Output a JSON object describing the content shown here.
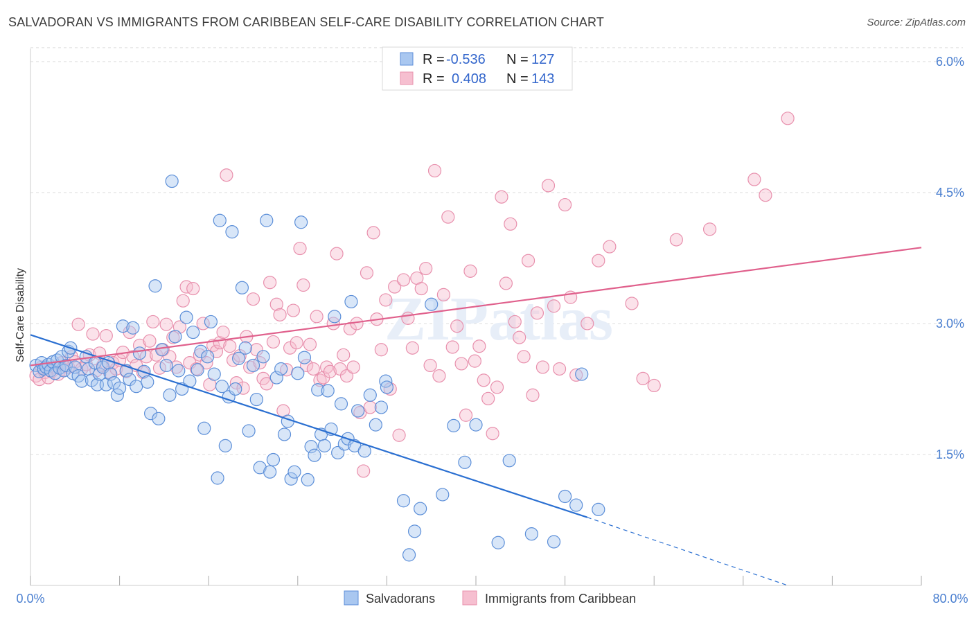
{
  "title": "SALVADORAN VS IMMIGRANTS FROM CARIBBEAN SELF-CARE DISABILITY CORRELATION CHART",
  "source": "Source: ZipAtlas.com",
  "watermark": "ZIPatlas",
  "colors": {
    "blue_fill": "#a9c7f0",
    "blue_stroke": "#5b8ed8",
    "blue_line": "#2a6fd1",
    "pink_fill": "#f6bfd0",
    "pink_stroke": "#e890ad",
    "pink_line": "#e0608c",
    "tick_label": "#4a7fd0",
    "grid": "#dddddd"
  },
  "legend": {
    "rows": [
      {
        "r_label": "R =",
        "r_value": "-0.536",
        "n_label": "N =",
        "n_value": "127"
      },
      {
        "r_label": "R =",
        "r_value": "0.408",
        "n_label": "N =",
        "n_value": "143"
      }
    ]
  },
  "chart_data": {
    "type": "scatter",
    "title": "SALVADORAN VS IMMIGRANTS FROM CARIBBEAN SELF-CARE DISABILITY CORRELATION CHART",
    "xlabel": "",
    "ylabel": "Self-Care Disability",
    "xlim": [
      0,
      80
    ],
    "ylim": [
      0,
      6.15
    ],
    "x_tick_labels": [
      "0.0%",
      "80.0%"
    ],
    "y_ticks": [
      1.5,
      3.0,
      4.5,
      6.0
    ],
    "y_tick_labels": [
      "1.5%",
      "3.0%",
      "4.5%",
      "6.0%"
    ],
    "grid": true,
    "legend_placement": "top-center",
    "series": [
      {
        "name": "Salvadorans",
        "color": "#5b8ed8",
        "trend": {
          "x0": 0,
          "y0": 2.87,
          "x1": 50,
          "y1": 0.78,
          "dashed_to_x": 68,
          "dashed_to_y": 0.0
        },
        "points": [
          [
            0.5,
            2.52
          ],
          [
            0.8,
            2.45
          ],
          [
            1.0,
            2.55
          ],
          [
            1.2,
            2.48
          ],
          [
            1.4,
            2.5
          ],
          [
            1.6,
            2.53
          ],
          [
            1.8,
            2.46
          ],
          [
            2.0,
            2.56
          ],
          [
            2.2,
            2.43
          ],
          [
            2.4,
            2.58
          ],
          [
            2.6,
            2.49
          ],
          [
            2.8,
            2.62
          ],
          [
            3.0,
            2.46
          ],
          [
            3.2,
            2.52
          ],
          [
            3.4,
            2.68
          ],
          [
            3.6,
            2.72
          ],
          [
            3.8,
            2.43
          ],
          [
            4.0,
            2.5
          ],
          [
            4.3,
            2.4
          ],
          [
            4.6,
            2.34
          ],
          [
            5.0,
            2.62
          ],
          [
            5.2,
            2.48
          ],
          [
            5.5,
            2.35
          ],
          [
            5.8,
            2.55
          ],
          [
            6.0,
            2.3
          ],
          [
            6.2,
            2.42
          ],
          [
            6.5,
            2.5
          ],
          [
            6.8,
            2.3
          ],
          [
            7.0,
            2.55
          ],
          [
            7.2,
            2.42
          ],
          [
            7.5,
            2.32
          ],
          [
            7.8,
            2.18
          ],
          [
            8.0,
            2.26
          ],
          [
            8.3,
            2.97
          ],
          [
            8.6,
            2.46
          ],
          [
            8.9,
            2.36
          ],
          [
            9.2,
            2.95
          ],
          [
            9.5,
            2.28
          ],
          [
            9.8,
            2.66
          ],
          [
            10.2,
            2.45
          ],
          [
            10.5,
            2.33
          ],
          [
            10.8,
            1.97
          ],
          [
            11.2,
            3.43
          ],
          [
            11.5,
            1.91
          ],
          [
            11.8,
            2.7
          ],
          [
            12.2,
            2.52
          ],
          [
            12.5,
            2.18
          ],
          [
            12.7,
            4.63
          ],
          [
            13.0,
            2.85
          ],
          [
            13.3,
            2.46
          ],
          [
            13.6,
            2.25
          ],
          [
            14.0,
            3.07
          ],
          [
            14.3,
            2.34
          ],
          [
            14.6,
            2.9
          ],
          [
            15.0,
            2.47
          ],
          [
            15.3,
            2.68
          ],
          [
            15.6,
            1.8
          ],
          [
            15.9,
            2.62
          ],
          [
            16.2,
            3.02
          ],
          [
            16.5,
            2.42
          ],
          [
            16.8,
            1.23
          ],
          [
            17.0,
            4.18
          ],
          [
            17.2,
            2.28
          ],
          [
            17.5,
            1.6
          ],
          [
            17.8,
            2.16
          ],
          [
            18.1,
            4.05
          ],
          [
            18.4,
            2.25
          ],
          [
            18.7,
            2.6
          ],
          [
            19.0,
            3.41
          ],
          [
            19.3,
            2.72
          ],
          [
            19.6,
            1.77
          ],
          [
            20.0,
            2.52
          ],
          [
            20.3,
            2.13
          ],
          [
            20.6,
            1.35
          ],
          [
            20.9,
            2.62
          ],
          [
            21.2,
            4.18
          ],
          [
            21.5,
            1.3
          ],
          [
            21.8,
            1.44
          ],
          [
            22.1,
            2.38
          ],
          [
            22.5,
            2.48
          ],
          [
            22.8,
            1.73
          ],
          [
            23.1,
            1.88
          ],
          [
            23.4,
            1.22
          ],
          [
            23.7,
            1.3
          ],
          [
            24.0,
            2.43
          ],
          [
            24.3,
            4.16
          ],
          [
            24.6,
            2.61
          ],
          [
            24.9,
            1.21
          ],
          [
            25.2,
            1.59
          ],
          [
            25.5,
            1.49
          ],
          [
            25.8,
            2.24
          ],
          [
            26.1,
            1.73
          ],
          [
            26.4,
            1.6
          ],
          [
            26.7,
            2.23
          ],
          [
            27.0,
            1.79
          ],
          [
            27.3,
            3.08
          ],
          [
            27.6,
            1.52
          ],
          [
            27.9,
            2.08
          ],
          [
            28.2,
            1.62
          ],
          [
            28.5,
            1.68
          ],
          [
            28.8,
            3.25
          ],
          [
            29.1,
            1.6
          ],
          [
            29.4,
            2.0
          ],
          [
            30.0,
            1.54
          ],
          [
            30.5,
            2.18
          ],
          [
            31.0,
            1.84
          ],
          [
            31.5,
            2.04
          ],
          [
            31.9,
            2.34
          ],
          [
            32.0,
            2.27
          ],
          [
            33.5,
            0.97
          ],
          [
            34.0,
            0.35
          ],
          [
            34.5,
            0.62
          ],
          [
            35.0,
            0.88
          ],
          [
            36.0,
            3.22
          ],
          [
            37.0,
            1.04
          ],
          [
            38.0,
            1.83
          ],
          [
            39.0,
            1.41
          ],
          [
            40.0,
            1.84
          ],
          [
            42.0,
            0.49
          ],
          [
            43.0,
            1.43
          ],
          [
            45.0,
            0.59
          ],
          [
            47.0,
            0.5
          ],
          [
            48.0,
            1.02
          ],
          [
            49.0,
            0.92
          ],
          [
            49.5,
            2.42
          ],
          [
            51.0,
            0.87
          ]
        ]
      },
      {
        "name": "Immigrants from Caribbean",
        "color": "#e890ad",
        "trend": {
          "x0": 0,
          "y0": 2.52,
          "x1": 80,
          "y1": 3.87
        },
        "points": [
          [
            0.5,
            2.4
          ],
          [
            0.8,
            2.36
          ],
          [
            1.0,
            2.5
          ],
          [
            1.3,
            2.44
          ],
          [
            1.6,
            2.38
          ],
          [
            1.9,
            2.45
          ],
          [
            2.2,
            2.5
          ],
          [
            2.5,
            2.42
          ],
          [
            2.8,
            2.55
          ],
          [
            3.1,
            2.47
          ],
          [
            3.4,
            2.5
          ],
          [
            3.7,
            2.62
          ],
          [
            4.0,
            2.56
          ],
          [
            4.3,
            2.99
          ],
          [
            4.6,
            2.48
          ],
          [
            5.0,
            2.53
          ],
          [
            5.3,
            2.64
          ],
          [
            5.6,
            2.88
          ],
          [
            5.9,
            2.46
          ],
          [
            6.2,
            2.66
          ],
          [
            6.5,
            2.52
          ],
          [
            6.8,
            2.86
          ],
          [
            7.1,
            2.44
          ],
          [
            7.4,
            2.55
          ],
          [
            7.7,
            2.48
          ],
          [
            8.0,
            2.58
          ],
          [
            8.3,
            2.67
          ],
          [
            8.6,
            2.45
          ],
          [
            8.9,
            2.9
          ],
          [
            9.2,
            2.62
          ],
          [
            9.5,
            2.52
          ],
          [
            9.8,
            2.75
          ],
          [
            10.1,
            2.44
          ],
          [
            10.4,
            2.62
          ],
          [
            10.7,
            2.8
          ],
          [
            11.0,
            3.02
          ],
          [
            11.3,
            2.64
          ],
          [
            11.6,
            2.49
          ],
          [
            11.9,
            2.7
          ],
          [
            12.2,
            2.99
          ],
          [
            12.5,
            2.62
          ],
          [
            12.8,
            2.84
          ],
          [
            13.1,
            2.5
          ],
          [
            13.4,
            2.96
          ],
          [
            13.7,
            3.26
          ],
          [
            14.0,
            3.42
          ],
          [
            14.3,
            2.55
          ],
          [
            14.6,
            3.4
          ],
          [
            14.9,
            2.48
          ],
          [
            15.2,
            2.64
          ],
          [
            15.5,
            3.0
          ],
          [
            15.8,
            2.55
          ],
          [
            16.1,
            2.3
          ],
          [
            16.4,
            2.75
          ],
          [
            16.7,
            2.68
          ],
          [
            17.0,
            2.78
          ],
          [
            17.3,
            2.9
          ],
          [
            17.6,
            4.7
          ],
          [
            17.9,
            2.74
          ],
          [
            18.2,
            2.58
          ],
          [
            18.5,
            2.32
          ],
          [
            18.8,
            2.63
          ],
          [
            19.1,
            2.26
          ],
          [
            19.4,
            2.85
          ],
          [
            19.7,
            2.5
          ],
          [
            20.0,
            3.28
          ],
          [
            20.3,
            2.7
          ],
          [
            20.6,
            2.55
          ],
          [
            20.9,
            2.37
          ],
          [
            21.2,
            2.31
          ],
          [
            21.5,
            3.47
          ],
          [
            21.8,
            2.79
          ],
          [
            22.1,
            3.22
          ],
          [
            22.4,
            3.1
          ],
          [
            22.7,
            2.0
          ],
          [
            23.0,
            2.47
          ],
          [
            23.3,
            2.72
          ],
          [
            23.6,
            3.15
          ],
          [
            23.9,
            2.78
          ],
          [
            24.2,
            3.86
          ],
          [
            24.5,
            3.44
          ],
          [
            24.8,
            2.52
          ],
          [
            25.1,
            2.76
          ],
          [
            25.4,
            2.48
          ],
          [
            25.7,
            3.08
          ],
          [
            26.0,
            2.35
          ],
          [
            26.3,
            2.38
          ],
          [
            26.6,
            2.5
          ],
          [
            26.9,
            2.45
          ],
          [
            27.2,
            3.0
          ],
          [
            27.5,
            3.8
          ],
          [
            27.8,
            2.48
          ],
          [
            28.1,
            2.64
          ],
          [
            28.4,
            2.4
          ],
          [
            28.7,
            2.94
          ],
          [
            29.0,
            2.5
          ],
          [
            29.3,
            3.0
          ],
          [
            29.6,
            1.98
          ],
          [
            29.9,
            1.31
          ],
          [
            30.2,
            3.58
          ],
          [
            30.5,
            2.04
          ],
          [
            30.8,
            4.04
          ],
          [
            31.1,
            3.05
          ],
          [
            31.5,
            2.7
          ],
          [
            31.9,
            3.27
          ],
          [
            32.3,
            2.25
          ],
          [
            32.7,
            3.42
          ],
          [
            33.1,
            1.72
          ],
          [
            33.5,
            3.5
          ],
          [
            33.9,
            3.06
          ],
          [
            34.3,
            2.72
          ],
          [
            34.7,
            3.52
          ],
          [
            35.1,
            3.4
          ],
          [
            35.5,
            3.63
          ],
          [
            35.9,
            2.52
          ],
          [
            36.3,
            4.75
          ],
          [
            36.7,
            2.4
          ],
          [
            37.1,
            3.33
          ],
          [
            37.5,
            4.22
          ],
          [
            37.9,
            2.73
          ],
          [
            38.3,
            2.97
          ],
          [
            38.7,
            2.54
          ],
          [
            39.1,
            1.95
          ],
          [
            39.5,
            3.6
          ],
          [
            39.9,
            2.57
          ],
          [
            40.3,
            2.74
          ],
          [
            40.7,
            2.35
          ],
          [
            41.1,
            2.14
          ],
          [
            41.5,
            1.74
          ],
          [
            41.9,
            2.27
          ],
          [
            42.3,
            4.45
          ],
          [
            42.7,
            3.46
          ],
          [
            43.1,
            4.14
          ],
          [
            43.5,
            3.02
          ],
          [
            43.9,
            2.84
          ],
          [
            44.3,
            2.62
          ],
          [
            44.7,
            3.72
          ],
          [
            45.1,
            2.18
          ],
          [
            45.5,
            3.12
          ],
          [
            46.0,
            2.5
          ],
          [
            46.5,
            4.58
          ],
          [
            47.0,
            3.2
          ],
          [
            47.5,
            2.48
          ],
          [
            48.0,
            4.36
          ],
          [
            48.5,
            3.3
          ],
          [
            49.0,
            2.41
          ],
          [
            50.0,
            3.0
          ],
          [
            51.0,
            3.72
          ],
          [
            52.0,
            3.88
          ],
          [
            54.0,
            3.23
          ],
          [
            55.0,
            2.37
          ],
          [
            56.0,
            2.29
          ],
          [
            58.0,
            3.96
          ],
          [
            61.0,
            4.08
          ],
          [
            65.0,
            4.65
          ],
          [
            66.0,
            4.47
          ],
          [
            68.0,
            5.35
          ]
        ]
      }
    ]
  }
}
